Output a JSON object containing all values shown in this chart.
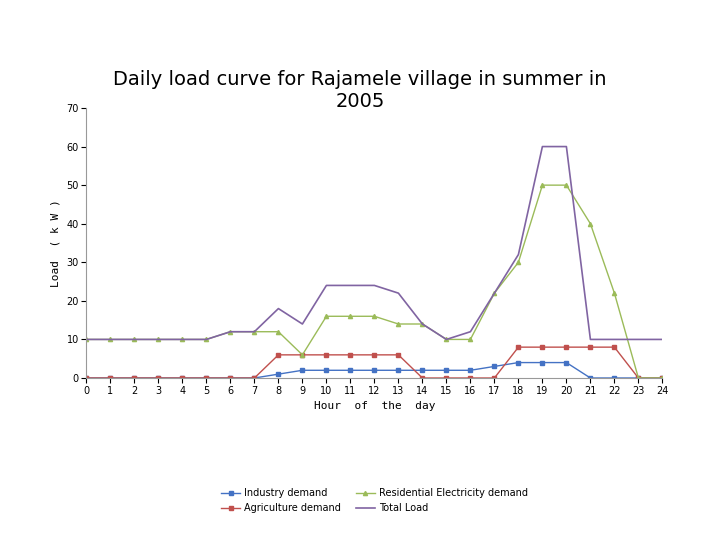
{
  "title": "Daily load curve for Rajamele village in summer in\n2005",
  "xlabel": "Hour  of  the  day",
  "ylabel": "Load  ( k W )",
  "hours": [
    0,
    1,
    2,
    3,
    4,
    5,
    6,
    7,
    8,
    9,
    10,
    11,
    12,
    13,
    14,
    15,
    16,
    17,
    18,
    19,
    20,
    21,
    22,
    23,
    24
  ],
  "industry_demand": [
    0,
    0,
    0,
    0,
    0,
    0,
    0,
    0,
    1,
    2,
    2,
    2,
    2,
    2,
    2,
    2,
    2,
    3,
    4,
    4,
    4,
    0,
    0,
    0,
    0
  ],
  "agriculture_demand": [
    0,
    0,
    0,
    0,
    0,
    0,
    0,
    0,
    6,
    6,
    6,
    6,
    6,
    6,
    0,
    0,
    0,
    0,
    8,
    8,
    8,
    8,
    8,
    0,
    0
  ],
  "residential_demand": [
    10,
    10,
    10,
    10,
    10,
    10,
    12,
    12,
    12,
    6,
    16,
    16,
    16,
    14,
    14,
    10,
    10,
    22,
    30,
    50,
    50,
    40,
    22,
    0,
    0
  ],
  "total_load": [
    10,
    10,
    10,
    10,
    10,
    10,
    12,
    12,
    18,
    14,
    24,
    24,
    24,
    22,
    14,
    10,
    12,
    22,
    32,
    60,
    60,
    10,
    10,
    10,
    10
  ],
  "industry_color": "#4472C4",
  "agriculture_color": "#C0504D",
  "residential_color": "#9BBB59",
  "total_color": "#8064A2",
  "ylim_min": 0,
  "ylim_max": 70,
  "yticks": [
    0,
    10,
    20,
    30,
    40,
    50,
    60,
    70
  ],
  "xticks": [
    0,
    1,
    2,
    3,
    4,
    5,
    6,
    7,
    8,
    9,
    10,
    11,
    12,
    13,
    14,
    15,
    16,
    17,
    18,
    19,
    20,
    21,
    22,
    23,
    24
  ],
  "legend_industry": "Industry demand",
  "legend_agriculture": "Agriculture demand",
  "legend_residential": "Residential Electricity demand",
  "legend_total": "Total Load",
  "background_color": "#ffffff",
  "title_fontsize": 14,
  "axis_label_fontsize": 8,
  "tick_fontsize": 7,
  "legend_fontsize": 7
}
